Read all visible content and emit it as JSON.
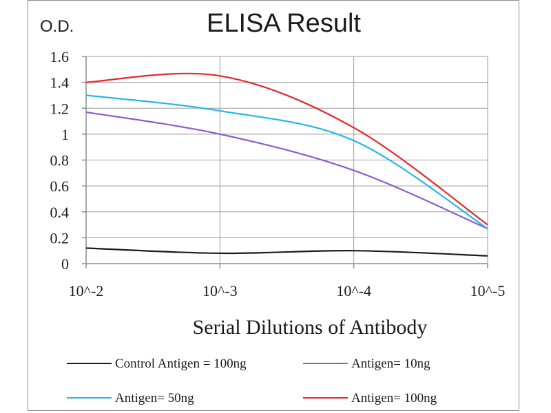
{
  "chart_data": {
    "type": "line",
    "title": "ELISA Result",
    "ylabel": "O.D.",
    "xlabel": "Serial Dilutions  of Antibody",
    "categories": [
      "10^-2",
      "10^-3",
      "10^-4",
      "10^-5"
    ],
    "ylim": [
      0,
      1.6
    ],
    "yticks": [
      "0",
      "0.2",
      "0.4",
      "0.6",
      "0.8",
      "1",
      "1.2",
      "1.4",
      "1.6"
    ],
    "grid": true,
    "legend_position": "bottom",
    "series": [
      {
        "name": "Control Antigen = 100ng",
        "color": "#1a1a1a",
        "values": [
          0.12,
          0.08,
          0.1,
          0.06
        ]
      },
      {
        "name": "Antigen= 10ng",
        "color": "#8b5fc8",
        "values": [
          1.17,
          1.0,
          0.72,
          0.27
        ]
      },
      {
        "name": "Antigen= 50ng",
        "color": "#25b8e4",
        "values": [
          1.3,
          1.18,
          0.95,
          0.27
        ]
      },
      {
        "name": "Antigen= 100ng",
        "color": "#e8262a",
        "values": [
          1.4,
          1.45,
          1.05,
          0.3
        ]
      }
    ]
  }
}
